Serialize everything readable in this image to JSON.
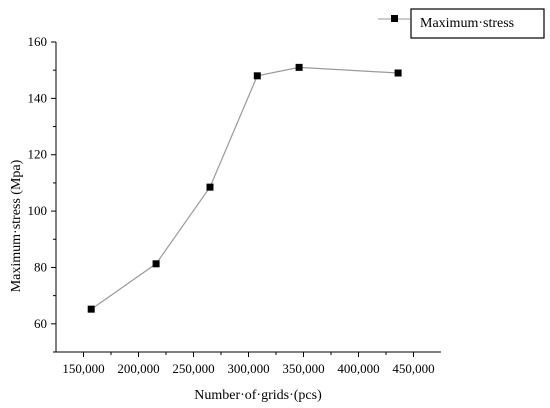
{
  "chart_data": {
    "type": "line",
    "title": "",
    "xlabel": "Number·of·grids·(pcs)",
    "ylabel": "Maximum·stress (Mpa)",
    "xlim": [
      125000,
      475000
    ],
    "ylim": [
      50,
      160
    ],
    "xticks": [
      150000,
      200000,
      250000,
      300000,
      350000,
      400000,
      450000
    ],
    "xtick_labels": [
      "150,000",
      "200,000",
      "250,000",
      "300,000",
      "350,000",
      "400,000",
      "450,000"
    ],
    "yticks": [
      60,
      80,
      100,
      120,
      140,
      160
    ],
    "ytick_labels": [
      "60",
      "80",
      "100",
      "120",
      "140",
      "160"
    ],
    "grid": false,
    "legend_position": "top-right",
    "series": [
      {
        "name": "Maximum·stress",
        "color": "#9a9a9a",
        "marker": "square",
        "marker_color": "#000000",
        "x": [
          157000,
          216000,
          265000,
          308000,
          346000,
          436000
        ],
        "y": [
          65.2,
          81.3,
          108.5,
          148.0,
          151.0,
          149.0
        ]
      }
    ]
  }
}
